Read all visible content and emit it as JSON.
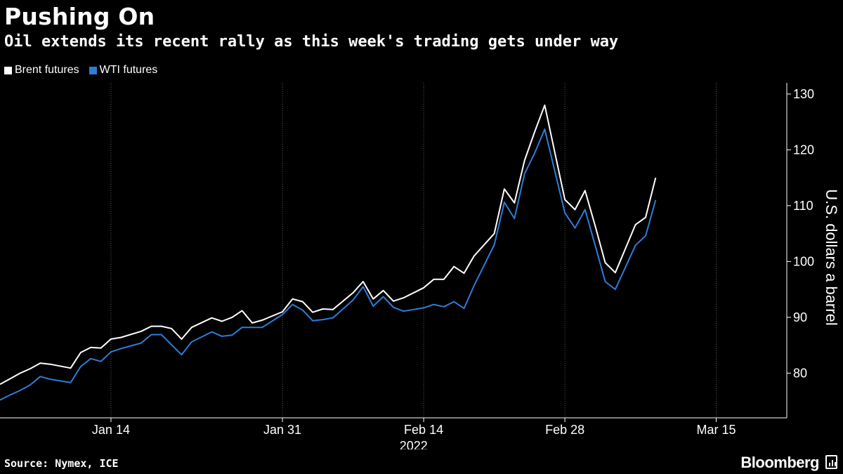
{
  "header": {
    "title": "Pushing On",
    "subtitle": "Oil extends its recent rally as this week's trading gets under way"
  },
  "footer": {
    "source": "Source: Nymex, ICE",
    "brand": "Bloomberg"
  },
  "colors": {
    "background": "#000000",
    "brent": "#ffffff",
    "wti": "#2e7dd7",
    "grid": "#5a5a5a"
  },
  "chart_data": {
    "type": "line",
    "xlabel": "2022",
    "ylabel": "U.S. dollars a barrel",
    "ylim": [
      72,
      132
    ],
    "yticks": [
      80,
      90,
      100,
      110,
      120,
      130
    ],
    "xlim": [
      "2022-01-03",
      "2022-03-22"
    ],
    "xticks": [
      {
        "date": "2022-01-14",
        "label": "Jan 14"
      },
      {
        "date": "2022-01-31",
        "label": "Jan 31"
      },
      {
        "date": "2022-02-14",
        "label": "Feb 14"
      },
      {
        "date": "2022-02-28",
        "label": "Feb 28"
      },
      {
        "date": "2022-03-15",
        "label": "Mar 15"
      }
    ],
    "grid": "vertical",
    "legend_position": "top-left",
    "series": [
      {
        "name": "Brent futures",
        "color": "#ffffff",
        "points": [
          [
            "2022-01-03",
            78.0
          ],
          [
            "2022-01-04",
            79.0
          ],
          [
            "2022-01-05",
            80.0
          ],
          [
            "2022-01-06",
            80.8
          ],
          [
            "2022-01-07",
            81.8
          ],
          [
            "2022-01-08",
            81.6
          ],
          [
            "2022-01-10",
            80.9
          ],
          [
            "2022-01-11",
            83.7
          ],
          [
            "2022-01-12",
            84.6
          ],
          [
            "2022-01-13",
            84.5
          ],
          [
            "2022-01-14",
            86.1
          ],
          [
            "2022-01-15",
            86.4
          ],
          [
            "2022-01-17",
            87.5
          ],
          [
            "2022-01-18",
            88.4
          ],
          [
            "2022-01-19",
            88.4
          ],
          [
            "2022-01-20",
            88.0
          ],
          [
            "2022-01-21",
            86.1
          ],
          [
            "2022-01-22",
            88.2
          ],
          [
            "2022-01-24",
            89.9
          ],
          [
            "2022-01-25",
            89.3
          ],
          [
            "2022-01-26",
            90.0
          ],
          [
            "2022-01-27",
            91.2
          ],
          [
            "2022-01-28",
            89.0
          ],
          [
            "2022-01-29",
            89.5
          ],
          [
            "2022-01-31",
            91.0
          ],
          [
            "2022-02-01",
            93.3
          ],
          [
            "2022-02-02",
            92.8
          ],
          [
            "2022-02-03",
            90.9
          ],
          [
            "2022-02-04",
            91.5
          ],
          [
            "2022-02-05",
            91.4
          ],
          [
            "2022-02-07",
            94.4
          ],
          [
            "2022-02-08",
            96.4
          ],
          [
            "2022-02-09",
            93.3
          ],
          [
            "2022-02-10",
            94.8
          ],
          [
            "2022-02-11",
            92.9
          ],
          [
            "2022-02-12",
            93.5
          ],
          [
            "2022-02-14",
            95.3
          ],
          [
            "2022-02-15",
            96.8
          ],
          [
            "2022-02-16",
            96.8
          ],
          [
            "2022-02-17",
            99.1
          ],
          [
            "2022-02-18",
            97.9
          ],
          [
            "2022-02-19",
            101.0
          ],
          [
            "2022-02-21",
            105.0
          ],
          [
            "2022-02-22",
            113.0
          ],
          [
            "2022-02-23",
            110.5
          ],
          [
            "2022-02-24",
            118.1
          ],
          [
            "2022-02-25",
            123.2
          ],
          [
            "2022-02-26",
            128.0
          ],
          [
            "2022-02-28",
            111.1
          ],
          [
            "2022-03-01",
            109.3
          ],
          [
            "2022-03-02",
            112.7
          ],
          [
            "2022-03-03",
            106.4
          ],
          [
            "2022-03-04",
            99.8
          ],
          [
            "2022-03-05",
            98.0
          ],
          [
            "2022-03-07",
            106.6
          ],
          [
            "2022-03-08",
            107.9
          ],
          [
            "2022-03-09",
            115.0
          ]
        ]
      },
      {
        "name": "WTI futures",
        "color": "#2e7dd7",
        "points": [
          [
            "2022-01-03",
            75.2
          ],
          [
            "2022-01-04",
            76.1
          ],
          [
            "2022-01-05",
            76.9
          ],
          [
            "2022-01-06",
            77.9
          ],
          [
            "2022-01-07",
            79.4
          ],
          [
            "2022-01-08",
            78.9
          ],
          [
            "2022-01-10",
            78.3
          ],
          [
            "2022-01-11",
            81.2
          ],
          [
            "2022-01-12",
            82.6
          ],
          [
            "2022-01-13",
            82.1
          ],
          [
            "2022-01-14",
            83.8
          ],
          [
            "2022-01-15",
            84.4
          ],
          [
            "2022-01-17",
            85.4
          ],
          [
            "2022-01-18",
            86.9
          ],
          [
            "2022-01-19",
            86.9
          ],
          [
            "2022-01-20",
            85.1
          ],
          [
            "2022-01-21",
            83.3
          ],
          [
            "2022-01-22",
            85.6
          ],
          [
            "2022-01-24",
            87.4
          ],
          [
            "2022-01-25",
            86.6
          ],
          [
            "2022-01-26",
            86.8
          ],
          [
            "2022-01-27",
            88.2
          ],
          [
            "2022-01-28",
            88.2
          ],
          [
            "2022-01-29",
            88.2
          ],
          [
            "2022-01-31",
            90.5
          ],
          [
            "2022-02-01",
            92.3
          ],
          [
            "2022-02-02",
            91.3
          ],
          [
            "2022-02-03",
            89.4
          ],
          [
            "2022-02-04",
            89.6
          ],
          [
            "2022-02-05",
            89.9
          ],
          [
            "2022-02-07",
            93.1
          ],
          [
            "2022-02-08",
            95.5
          ],
          [
            "2022-02-09",
            92.0
          ],
          [
            "2022-02-10",
            93.7
          ],
          [
            "2022-02-11",
            91.8
          ],
          [
            "2022-02-12",
            91.1
          ],
          [
            "2022-02-14",
            91.7
          ],
          [
            "2022-02-15",
            92.3
          ],
          [
            "2022-02-16",
            91.9
          ],
          [
            "2022-02-17",
            92.8
          ],
          [
            "2022-02-18",
            91.6
          ],
          [
            "2022-02-19",
            95.7
          ],
          [
            "2022-02-21",
            103.0
          ],
          [
            "2022-02-22",
            110.6
          ],
          [
            "2022-02-23",
            107.7
          ],
          [
            "2022-02-24",
            115.7
          ],
          [
            "2022-02-25",
            119.4
          ],
          [
            "2022-02-26",
            123.7
          ],
          [
            "2022-02-28",
            108.7
          ],
          [
            "2022-03-01",
            106.0
          ],
          [
            "2022-03-02",
            109.3
          ],
          [
            "2022-03-03",
            102.9
          ],
          [
            "2022-03-04",
            96.4
          ],
          [
            "2022-03-05",
            95.0
          ],
          [
            "2022-03-07",
            102.9
          ],
          [
            "2022-03-08",
            104.6
          ],
          [
            "2022-03-09",
            111.0
          ]
        ]
      }
    ]
  }
}
